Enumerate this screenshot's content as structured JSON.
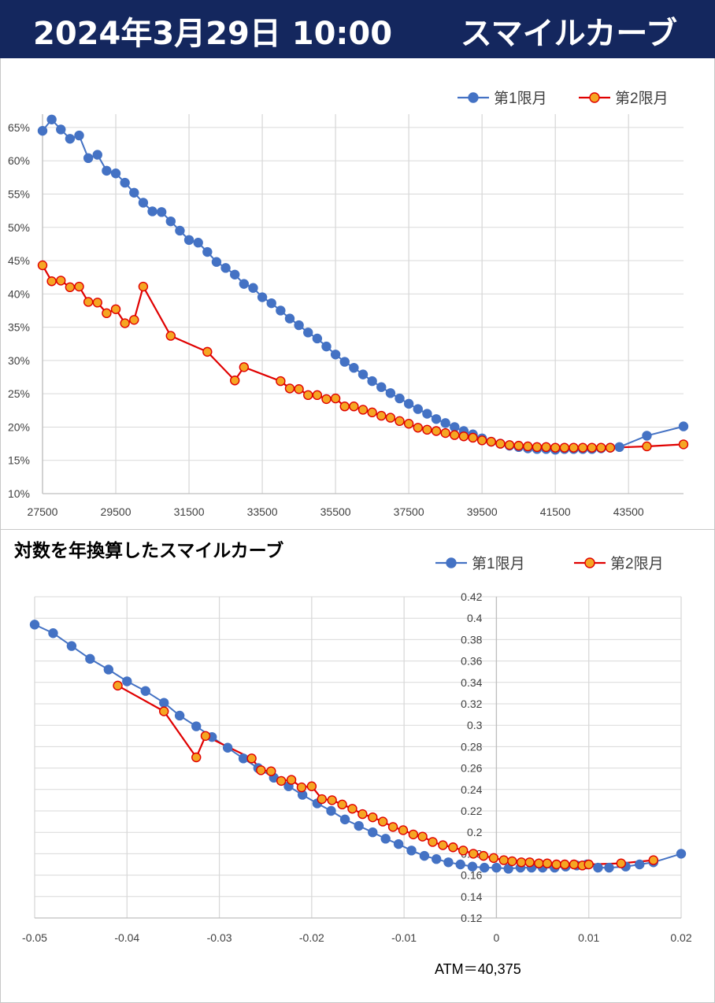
{
  "header": {
    "datetime": "2024年3月29日 10:00",
    "title": "スマイルカーブ",
    "background": "#14275e"
  },
  "colors": {
    "series1": "#4472c4",
    "series2": "#e00000",
    "series2_fill": "#f5a623",
    "grid": "#d9d9d9"
  },
  "annotation": {
    "atm": "ATM＝40,375"
  },
  "chart_data": [
    {
      "type": "line",
      "title": "",
      "xlabel": "",
      "ylabel": "",
      "xlim": [
        27500,
        45000
      ],
      "ylim": [
        0.1,
        0.67
      ],
      "xticks": [
        27500,
        29500,
        31500,
        33500,
        35500,
        37500,
        39500,
        41500,
        43500
      ],
      "xtick_labels": [
        "27500",
        "29500",
        "31500",
        "33500",
        "35500",
        "37500",
        "39500",
        "41500",
        "43500"
      ],
      "yticks": [
        0.1,
        0.15,
        0.2,
        0.25,
        0.3,
        0.35,
        0.4,
        0.45,
        0.5,
        0.55,
        0.6,
        0.65
      ],
      "ytick_labels": [
        "10%",
        "15%",
        "20%",
        "25%",
        "30%",
        "35%",
        "40%",
        "45%",
        "50%",
        "55%",
        "60%",
        "65%"
      ],
      "legend_position": "top-right",
      "grid": true,
      "series": [
        {
          "name": "第1限月",
          "x": [
            27500,
            27750,
            28000,
            28250,
            28500,
            28750,
            29000,
            29250,
            29500,
            29750,
            30000,
            30250,
            30500,
            30750,
            31000,
            31250,
            31500,
            31750,
            32000,
            32250,
            32500,
            32750,
            33000,
            33250,
            33500,
            33750,
            34000,
            34250,
            34500,
            34750,
            35000,
            35250,
            35500,
            35750,
            36000,
            36250,
            36500,
            36750,
            37000,
            37250,
            37500,
            37750,
            38000,
            38250,
            38500,
            38750,
            39000,
            39250,
            39500,
            39750,
            40000,
            40250,
            40500,
            40750,
            41000,
            41250,
            41500,
            41750,
            42000,
            42250,
            42500,
            42750,
            43000,
            43250,
            44000,
            45000
          ],
          "y": [
            0.645,
            0.662,
            0.647,
            0.633,
            0.638,
            0.604,
            0.609,
            0.585,
            0.581,
            0.567,
            0.552,
            0.537,
            0.524,
            0.523,
            0.509,
            0.495,
            0.481,
            0.477,
            0.463,
            0.448,
            0.439,
            0.429,
            0.415,
            0.409,
            0.395,
            0.386,
            0.375,
            0.363,
            0.353,
            0.342,
            0.333,
            0.321,
            0.309,
            0.298,
            0.289,
            0.279,
            0.269,
            0.26,
            0.251,
            0.243,
            0.235,
            0.227,
            0.22,
            0.212,
            0.206,
            0.2,
            0.194,
            0.189,
            0.183,
            0.178,
            0.175,
            0.172,
            0.17,
            0.168,
            0.167,
            0.167,
            0.166,
            0.167,
            0.167,
            0.167,
            0.167,
            0.168,
            0.169,
            0.17,
            0.187,
            0.201
          ]
        },
        {
          "name": "第2限月",
          "x": [
            27500,
            27750,
            28000,
            28250,
            28500,
            28750,
            29000,
            29250,
            29500,
            29750,
            30000,
            30250,
            31000,
            32000,
            32750,
            33000,
            34000,
            34250,
            34500,
            34750,
            35000,
            35250,
            35500,
            35750,
            36000,
            36250,
            36500,
            36750,
            37000,
            37250,
            37500,
            37750,
            38000,
            38250,
            38500,
            38750,
            39000,
            39250,
            39500,
            39750,
            40000,
            40250,
            40500,
            40750,
            41000,
            41250,
            41500,
            41750,
            42000,
            42250,
            42500,
            42750,
            43000,
            44000,
            45000
          ],
          "y": [
            0.443,
            0.419,
            0.42,
            0.41,
            0.411,
            0.388,
            0.387,
            0.371,
            0.377,
            0.356,
            0.361,
            0.411,
            0.337,
            0.313,
            0.27,
            0.29,
            0.269,
            0.258,
            0.257,
            0.248,
            0.248,
            0.242,
            0.243,
            0.231,
            0.231,
            0.226,
            0.222,
            0.217,
            0.214,
            0.209,
            0.205,
            0.199,
            0.196,
            0.194,
            0.191,
            0.188,
            0.186,
            0.184,
            0.18,
            0.178,
            0.175,
            0.173,
            0.172,
            0.171,
            0.17,
            0.17,
            0.169,
            0.169,
            0.169,
            0.169,
            0.169,
            0.169,
            0.169,
            0.171,
            0.174
          ]
        }
      ]
    },
    {
      "type": "line",
      "title": "対数を年換算したスマイルカーブ",
      "xlabel": "",
      "ylabel": "",
      "xlim": [
        -0.05,
        0.02
      ],
      "ylim": [
        0.12,
        0.42
      ],
      "xticks": [
        -0.05,
        -0.04,
        -0.03,
        -0.02,
        -0.01,
        0,
        0.01,
        0.02
      ],
      "xtick_labels": [
        "-0.05",
        "-0.04",
        "-0.03",
        "-0.02",
        "-0.01",
        "0",
        "0.01",
        "0.02"
      ],
      "yticks": [
        0.12,
        0.14,
        0.16,
        0.18,
        0.2,
        0.22,
        0.24,
        0.26,
        0.28,
        0.3,
        0.32,
        0.34,
        0.36,
        0.38,
        0.4,
        0.42
      ],
      "ytick_labels": [
        "0.12",
        "0.14",
        "0.16",
        "0.18",
        "0.2",
        "0.22",
        "0.24",
        "0.26",
        "0.28",
        "0.3",
        "0.32",
        "0.34",
        "0.36",
        "0.38",
        "0.4",
        "0.42"
      ],
      "legend_position": "top-right",
      "grid": true,
      "series": [
        {
          "name": "第1限月",
          "x": [
            -0.05,
            -0.048,
            -0.046,
            -0.044,
            -0.042,
            -0.04,
            -0.038,
            -0.036,
            -0.0343,
            -0.0325,
            -0.0308,
            -0.0291,
            -0.0274,
            -0.0258,
            -0.0241,
            -0.0225,
            -0.021,
            -0.0194,
            -0.0179,
            -0.0164,
            -0.0149,
            -0.0134,
            -0.012,
            -0.0106,
            -0.0092,
            -0.0078,
            -0.0065,
            -0.0052,
            -0.0039,
            -0.0026,
            -0.0013,
            0.0,
            0.0013,
            0.0026,
            0.0038,
            0.005,
            0.0063,
            0.0075,
            0.0087,
            0.0098,
            0.011,
            0.0122,
            0.014,
            0.0155,
            0.017,
            0.02
          ],
          "y": [
            0.394,
            0.386,
            0.374,
            0.362,
            0.352,
            0.341,
            0.332,
            0.321,
            0.309,
            0.299,
            0.289,
            0.279,
            0.269,
            0.26,
            0.251,
            0.243,
            0.235,
            0.227,
            0.22,
            0.212,
            0.206,
            0.2,
            0.194,
            0.189,
            0.183,
            0.178,
            0.175,
            0.172,
            0.17,
            0.168,
            0.167,
            0.167,
            0.166,
            0.167,
            0.167,
            0.167,
            0.167,
            0.168,
            0.169,
            0.17,
            0.167,
            0.167,
            0.168,
            0.17,
            0.172,
            0.18
          ]
        },
        {
          "name": "第2限月",
          "x": [
            -0.041,
            -0.036,
            -0.0325,
            -0.0315,
            -0.0265,
            -0.0255,
            -0.0244,
            -0.0233,
            -0.0222,
            -0.0211,
            -0.02,
            -0.0189,
            -0.0178,
            -0.0167,
            -0.0156,
            -0.0145,
            -0.0134,
            -0.0123,
            -0.0112,
            -0.0101,
            -0.009,
            -0.008,
            -0.0069,
            -0.0058,
            -0.0047,
            -0.0036,
            -0.0025,
            -0.0014,
            -0.0003,
            0.0008,
            0.0017,
            0.0027,
            0.0036,
            0.0046,
            0.0055,
            0.0065,
            0.0074,
            0.0084,
            0.0093,
            0.01,
            0.0135,
            0.017
          ],
          "y": [
            0.337,
            0.313,
            0.27,
            0.29,
            0.269,
            0.258,
            0.257,
            0.248,
            0.249,
            0.242,
            0.243,
            0.231,
            0.23,
            0.226,
            0.222,
            0.217,
            0.214,
            0.21,
            0.205,
            0.202,
            0.198,
            0.196,
            0.191,
            0.188,
            0.186,
            0.183,
            0.18,
            0.178,
            0.176,
            0.174,
            0.173,
            0.172,
            0.172,
            0.171,
            0.171,
            0.17,
            0.17,
            0.17,
            0.169,
            0.17,
            0.171,
            0.174
          ]
        }
      ]
    }
  ]
}
